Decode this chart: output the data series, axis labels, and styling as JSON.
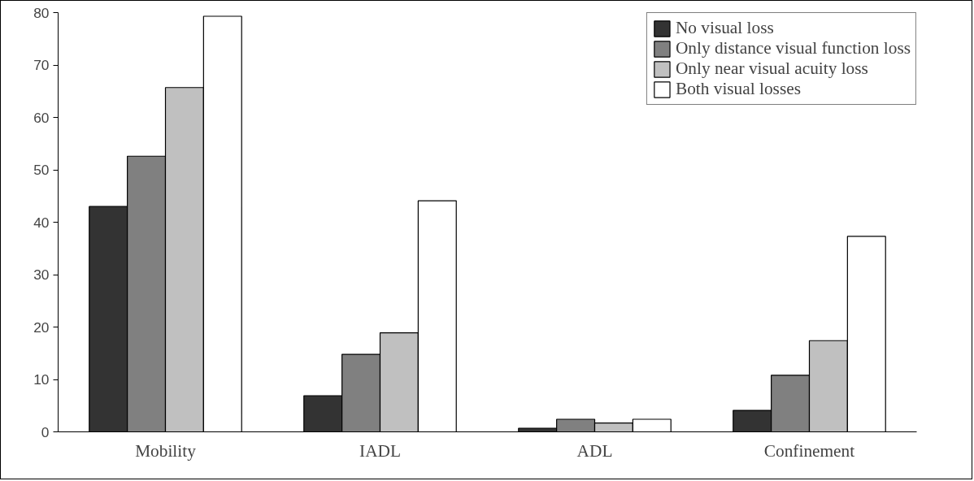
{
  "chart_data": {
    "type": "bar",
    "categories": [
      "Mobility",
      "IADL",
      "ADL",
      "Confinement"
    ],
    "series": [
      {
        "name": "No visual loss",
        "color": "#333333",
        "values": [
          43.0,
          6.9,
          0.7,
          4.1
        ]
      },
      {
        "name": "Only distance visual function loss",
        "color": "#808080",
        "values": [
          52.6,
          14.8,
          2.4,
          10.8
        ]
      },
      {
        "name": "Only near visual acuity loss",
        "color": "#c0c0c0",
        "values": [
          65.7,
          18.9,
          1.7,
          17.4
        ]
      },
      {
        "name": "Both visual losses",
        "color": "#ffffff",
        "values": [
          79.3,
          44.1,
          2.4,
          37.3
        ]
      }
    ],
    "ylim": [
      0,
      80
    ],
    "yticks": [
      0,
      10,
      20,
      30,
      40,
      50,
      60,
      70,
      80
    ],
    "grid": false,
    "legend": "top right"
  }
}
